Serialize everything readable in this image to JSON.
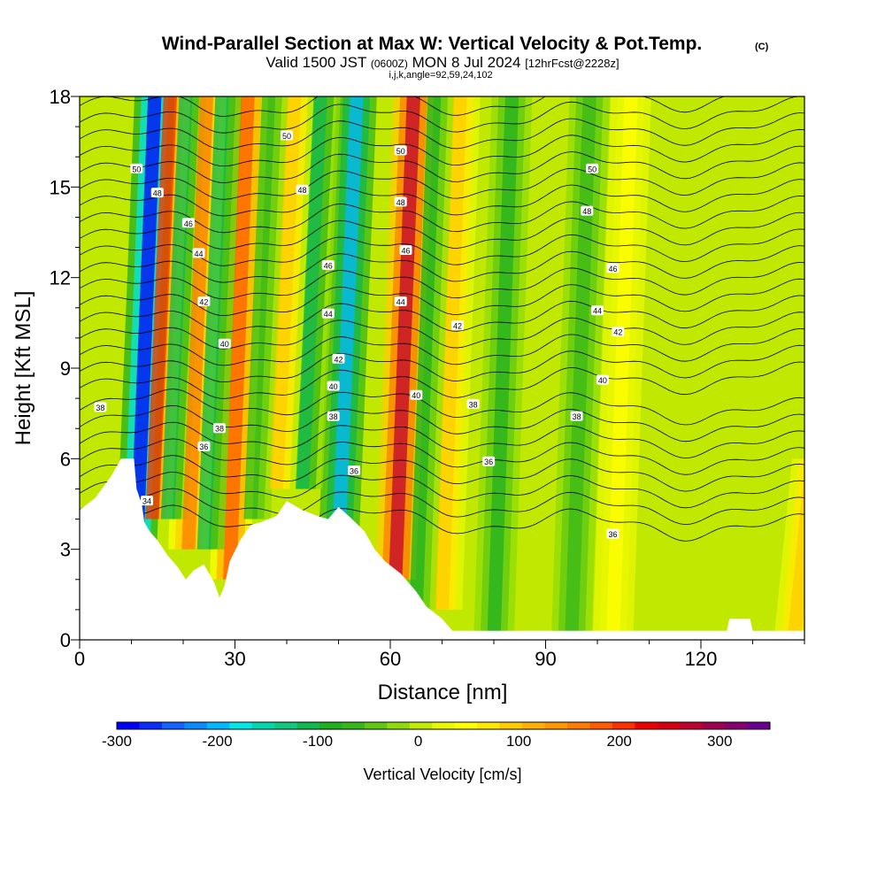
{
  "chart_data": {
    "type": "heatmap",
    "title": {
      "main": "Wind-Parallel Section at Max W: Vertical Velocity & Pot.Temp.",
      "copyright": "(C)",
      "valid_prefix": "Valid 1500 JST",
      "valid_utc": "(0600Z)",
      "valid_date": "MON 8 Jul 2024",
      "fcst": "[12hrFcst@2228z]",
      "subtitle": "i,j,k,angle=92,59,24,102"
    },
    "xlabel": "Distance [nm]",
    "ylabel": "Height [Kft MSL]",
    "xlim": [
      0,
      140
    ],
    "ylim": [
      0,
      18
    ],
    "x_ticks": [
      "0",
      "30",
      "60",
      "90",
      "120"
    ],
    "x_tick_values": [
      0,
      30,
      60,
      90,
      120
    ],
    "y_ticks": [
      "0",
      "3",
      "6",
      "9",
      "12",
      "15",
      "18"
    ],
    "y_tick_values": [
      0,
      3,
      6,
      9,
      12,
      15,
      18
    ],
    "colorbar": {
      "label": "Vertical Velocity [cm/s]",
      "range": [
        -300,
        350
      ],
      "tick_labels": [
        "-300",
        "-200",
        "-100",
        "0",
        "100",
        "200",
        "300"
      ],
      "tick_values": [
        -300,
        -200,
        -100,
        0,
        100,
        200,
        300
      ],
      "colors": [
        "#0000ff",
        "#0a2cff",
        "#1560ff",
        "#0a8cff",
        "#00b8ff",
        "#00e8e8",
        "#00d8b0",
        "#10c880",
        "#10b850",
        "#20b020",
        "#38b818",
        "#60c810",
        "#90dc08",
        "#c0ec00",
        "#e8f800",
        "#ffff00",
        "#ffe800",
        "#ffcc00",
        "#ffb000",
        "#ff9800",
        "#ff7c00",
        "#ff5c00",
        "#ff3000",
        "#f00000",
        "#d80010",
        "#c00030",
        "#a00050",
        "#880070",
        "#6a0090"
      ]
    },
    "series": [
      {
        "name": "Vertical Velocity",
        "units": "cm/s",
        "bands": [
          {
            "x": 11,
            "w": -300,
            "z": [
              3,
              18
            ]
          },
          {
            "x": 14,
            "w": 200,
            "z": [
              4,
              18
            ]
          },
          {
            "x": 17,
            "w": -100,
            "z": [
              4,
              18
            ]
          },
          {
            "x": 21,
            "w": 150,
            "z": [
              3,
              18
            ]
          },
          {
            "x": 24,
            "w": -120,
            "z": [
              3,
              18
            ]
          },
          {
            "x": 29,
            "w": 180,
            "z": [
              2,
              18
            ]
          },
          {
            "x": 33,
            "w": -60,
            "z": [
              4,
              18
            ]
          },
          {
            "x": 38,
            "w": 100,
            "z": [
              5,
              18
            ]
          },
          {
            "x": 43,
            "w": -100,
            "z": [
              5,
              18
            ]
          },
          {
            "x": 50,
            "w": -200,
            "z": [
              3,
              18
            ]
          },
          {
            "x": 61,
            "w": 280,
            "z": [
              2,
              18
            ]
          },
          {
            "x": 65,
            "w": -80,
            "z": [
              1,
              18
            ]
          },
          {
            "x": 70,
            "w": 100,
            "z": [
              1,
              18
            ]
          },
          {
            "x": 80,
            "w": -80,
            "z": [
              0,
              18
            ]
          },
          {
            "x": 95,
            "w": -60,
            "z": [
              0,
              18
            ]
          },
          {
            "x": 103,
            "w": 50,
            "z": [
              0,
              18
            ]
          },
          {
            "x": 138,
            "w": 100,
            "z": [
              0,
              6
            ]
          }
        ]
      },
      {
        "name": "Pot.Temp.",
        "units": "C",
        "contour_labels": [
          {
            "x": 4,
            "z": 7.7,
            "value": "38"
          },
          {
            "x": 11,
            "z": 15.6,
            "value": "50"
          },
          {
            "x": 15,
            "z": 14.8,
            "value": "48"
          },
          {
            "x": 21,
            "z": 13.8,
            "value": "46"
          },
          {
            "x": 23,
            "z": 12.8,
            "value": "44"
          },
          {
            "x": 24,
            "z": 11.2,
            "value": "42"
          },
          {
            "x": 28,
            "z": 9.8,
            "value": "40"
          },
          {
            "x": 27,
            "z": 7.0,
            "value": "38"
          },
          {
            "x": 24,
            "z": 6.4,
            "value": "36"
          },
          {
            "x": 13,
            "z": 4.6,
            "value": "34"
          },
          {
            "x": 40,
            "z": 16.7,
            "value": "50"
          },
          {
            "x": 43,
            "z": 14.9,
            "value": "48"
          },
          {
            "x": 48,
            "z": 12.4,
            "value": "46"
          },
          {
            "x": 48,
            "z": 10.8,
            "value": "44"
          },
          {
            "x": 50,
            "z": 9.3,
            "value": "42"
          },
          {
            "x": 49,
            "z": 8.4,
            "value": "40"
          },
          {
            "x": 49,
            "z": 7.4,
            "value": "38"
          },
          {
            "x": 53,
            "z": 5.6,
            "value": "36"
          },
          {
            "x": 62,
            "z": 16.2,
            "value": "50"
          },
          {
            "x": 62,
            "z": 14.5,
            "value": "48"
          },
          {
            "x": 63,
            "z": 12.9,
            "value": "46"
          },
          {
            "x": 62,
            "z": 11.2,
            "value": "44"
          },
          {
            "x": 73,
            "z": 10.4,
            "value": "42"
          },
          {
            "x": 65,
            "z": 8.1,
            "value": "40"
          },
          {
            "x": 76,
            "z": 7.8,
            "value": "38"
          },
          {
            "x": 79,
            "z": 5.9,
            "value": "36"
          },
          {
            "x": 99,
            "z": 15.6,
            "value": "50"
          },
          {
            "x": 98,
            "z": 14.2,
            "value": "48"
          },
          {
            "x": 103,
            "z": 12.3,
            "value": "46"
          },
          {
            "x": 100,
            "z": 10.9,
            "value": "44"
          },
          {
            "x": 104,
            "z": 10.2,
            "value": "42"
          },
          {
            "x": 101,
            "z": 8.6,
            "value": "40"
          },
          {
            "x": 96,
            "z": 7.4,
            "value": "38"
          },
          {
            "x": 103,
            "z": 3.5,
            "value": "36"
          }
        ]
      }
    ],
    "terrain_kft": [
      [
        0,
        4.3
      ],
      [
        3,
        4.7
      ],
      [
        6,
        5.4
      ],
      [
        8,
        6.0
      ],
      [
        10.5,
        6.0
      ],
      [
        11,
        5.0
      ],
      [
        12,
        4.5
      ],
      [
        12.5,
        3.9
      ],
      [
        13.5,
        3.6
      ],
      [
        15,
        3.3
      ],
      [
        17,
        2.8
      ],
      [
        19,
        2.4
      ],
      [
        20.5,
        2.0
      ],
      [
        22,
        2.3
      ],
      [
        24,
        2.5
      ],
      [
        26,
        1.9
      ],
      [
        27,
        1.4
      ],
      [
        28,
        1.8
      ],
      [
        29,
        2.6
      ],
      [
        31,
        3.3
      ],
      [
        33,
        3.8
      ],
      [
        35,
        3.9
      ],
      [
        38,
        4.1
      ],
      [
        40,
        4.6
      ],
      [
        43,
        4.3
      ],
      [
        46,
        4.1
      ],
      [
        48,
        4.0
      ],
      [
        50,
        4.4
      ],
      [
        52,
        4.1
      ],
      [
        55,
        3.6
      ],
      [
        57,
        3.0
      ],
      [
        59,
        2.6
      ],
      [
        62,
        2.2
      ],
      [
        65,
        1.6
      ],
      [
        67,
        1.1
      ],
      [
        70,
        0.7
      ],
      [
        72,
        0.3
      ],
      [
        80,
        0.3
      ],
      [
        100,
        0.3
      ],
      [
        125,
        0.3
      ],
      [
        125.5,
        0.7
      ],
      [
        129.5,
        0.7
      ],
      [
        130,
        0.3
      ],
      [
        140,
        0.3
      ]
    ],
    "grid": false,
    "legend": "bottom colorbar"
  }
}
